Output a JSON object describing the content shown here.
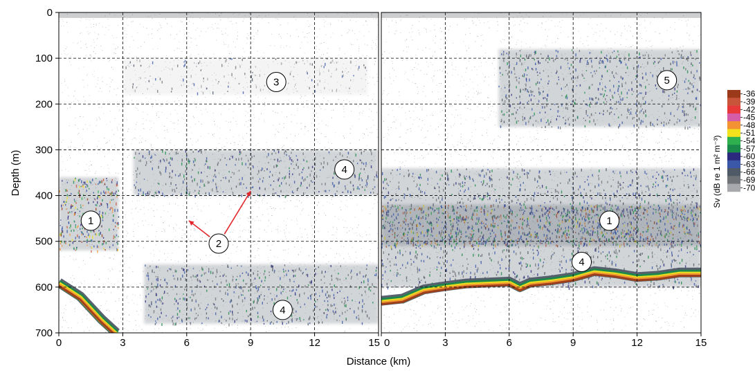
{
  "chart_data": {
    "type": "heatmap",
    "xlabel": "Distance (km)",
    "ylabel": "Depth (m)",
    "colorbar_label": "Sv (dB re 1 m² m⁻³)",
    "colorbar": {
      "ticks": [
        "-36",
        "-39",
        "-42",
        "-45",
        "-48",
        "-51",
        "-54",
        "-57",
        "-60",
        "-63",
        "-66",
        "-69",
        "-70"
      ],
      "colors": [
        "#9a3a1a",
        "#c8553a",
        "#e8383a",
        "#d45ca8",
        "#f39233",
        "#f2e21e",
        "#2fb04f",
        "#1a8a4a",
        "#2b2a7e",
        "#3a57a8",
        "#4f5a66",
        "#707479",
        "#a7a9ac"
      ]
    },
    "grid": true,
    "panels": [
      {
        "xlim": [
          0,
          15
        ],
        "ylim": [
          0,
          700
        ],
        "x_ticks": [
          "0",
          "3",
          "6",
          "9",
          "12",
          "15"
        ],
        "y_ticks": [
          "0",
          "100",
          "200",
          "300",
          "400",
          "500",
          "600",
          "700"
        ],
        "layers": [
          {
            "id": "3",
            "depth_m": [
              100,
              180
            ],
            "x_km": [
              3,
              14.5
            ],
            "intensity": "weak"
          },
          {
            "id": "4",
            "depth_m": [
              300,
              400
            ],
            "x_km": [
              3.5,
              15
            ],
            "intensity": "medium"
          },
          {
            "id": "4",
            "depth_m": [
              550,
              680
            ],
            "x_km": [
              4,
              15
            ],
            "intensity": "medium"
          },
          {
            "id": "1",
            "depth_m": [
              360,
              520
            ],
            "x_km": [
              0,
              2.8
            ],
            "intensity": "strong"
          }
        ],
        "seafloor": [
          [
            0,
            590
          ],
          [
            1,
            620
          ],
          [
            2,
            670
          ],
          [
            2.7,
            700
          ]
        ],
        "annotations": [
          {
            "label": "1",
            "x": 1.5,
            "y": 455
          },
          {
            "label": "2",
            "x": 7.5,
            "y": 505
          },
          {
            "label": "3",
            "x": 10.2,
            "y": 152
          },
          {
            "label": "4",
            "x": 13.4,
            "y": 343
          },
          {
            "label": "4",
            "x": 10.5,
            "y": 650
          }
        ],
        "arrows": [
          {
            "from": [
              7.5,
              505
            ],
            "to": [
              6.1,
              455
            ]
          },
          {
            "from": [
              7.5,
              505
            ],
            "to": [
              9.0,
              390
            ]
          }
        ]
      },
      {
        "xlim": [
          0,
          15
        ],
        "ylim": [
          0,
          700
        ],
        "x_ticks": [
          "0",
          "3",
          "6",
          "9",
          "12",
          "15"
        ],
        "y_ticks": [],
        "layers": [
          {
            "id": "5",
            "depth_m": [
              80,
              250
            ],
            "x_km": [
              5.5,
              15
            ],
            "intensity": "medium"
          },
          {
            "id": "1",
            "depth_m": [
              420,
              510
            ],
            "x_km": [
              0,
              15
            ],
            "intensity": "strong"
          },
          {
            "id": "4",
            "depth_m": [
              340,
              600
            ],
            "x_km": [
              0,
              15
            ],
            "intensity": "medium"
          }
        ],
        "seafloor": [
          [
            0,
            630
          ],
          [
            1,
            625
          ],
          [
            2,
            605
          ],
          [
            3,
            598
          ],
          [
            4,
            592
          ],
          [
            5,
            590
          ],
          [
            6,
            588
          ],
          [
            6.5,
            600
          ],
          [
            7,
            590
          ],
          [
            8,
            585
          ],
          [
            9,
            578
          ],
          [
            10,
            565
          ],
          [
            11,
            570
          ],
          [
            12,
            578
          ],
          [
            13,
            575
          ],
          [
            14,
            568
          ],
          [
            15,
            568
          ]
        ],
        "annotations": [
          {
            "label": "5",
            "x": 13.4,
            "y": 148
          },
          {
            "label": "1",
            "x": 10.7,
            "y": 455
          },
          {
            "label": "4",
            "x": 9.4,
            "y": 545
          }
        ],
        "arrows": []
      }
    ]
  }
}
